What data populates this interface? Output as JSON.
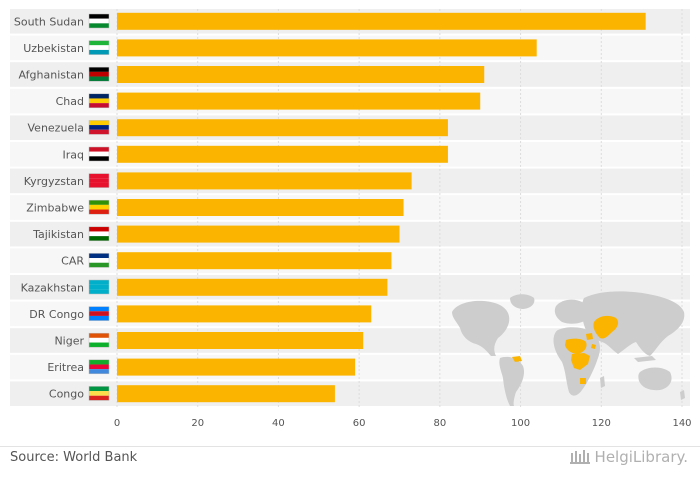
{
  "chart_data": {
    "type": "bar",
    "orientation": "horizontal",
    "categories": [
      "South Sudan",
      "Uzbekistan",
      "Afghanistan",
      "Chad",
      "Venezuela",
      "Iraq",
      "Kyrgyzstan",
      "Zimbabwe",
      "Tajikistan",
      "CAR",
      "Kazakhstan",
      "DR Congo",
      "Niger",
      "Eritrea",
      "Congo"
    ],
    "values": [
      131,
      104,
      91,
      90,
      82,
      82,
      73,
      71,
      70,
      68,
      67,
      63,
      61,
      59,
      54
    ],
    "xlim": [
      0,
      140
    ],
    "xticks": [
      "0",
      "20",
      "40",
      "60",
      "80",
      "100",
      "120",
      "140"
    ],
    "bar_color": "#fbb400",
    "highlight_color": "#fbb400",
    "title": "",
    "xlabel": "",
    "ylabel": ""
  },
  "footer": {
    "source": "Source: World Bank",
    "brand": "HelgiLibrary."
  }
}
